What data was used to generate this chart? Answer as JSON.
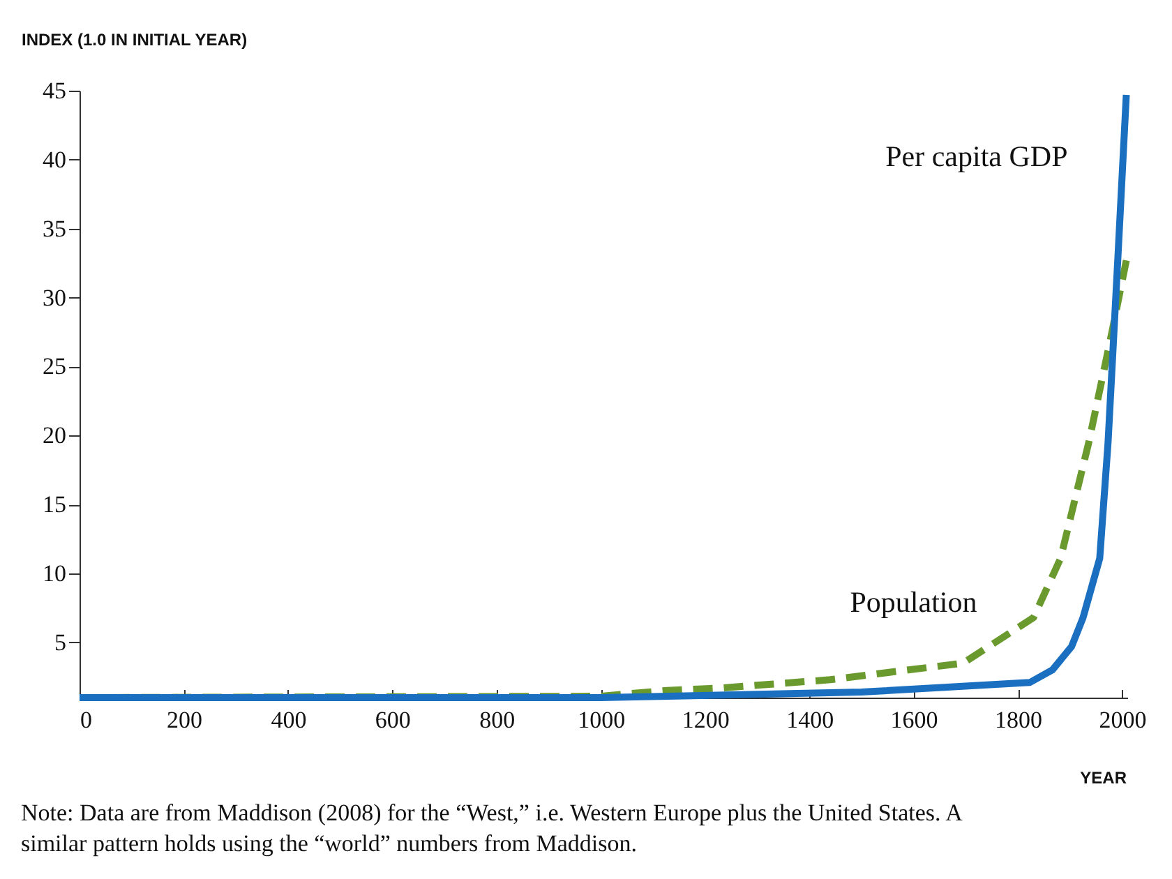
{
  "chart_data": {
    "type": "line",
    "xlabel": "YEAR",
    "ylabel": "INDEX (1.0 IN INITIAL YEAR)",
    "xlim": [
      0,
      2010
    ],
    "xticks": [
      0,
      200,
      400,
      600,
      800,
      1000,
      1200,
      1400,
      1600,
      1800,
      2000
    ],
    "ylim": [
      1,
      45
    ],
    "yticks": [
      5,
      10,
      15,
      20,
      25,
      30,
      35,
      40,
      45
    ],
    "grid": false,
    "marker": "none",
    "series": [
      {
        "name": "Per capita GDP",
        "color": "#1a6fc0",
        "line_style": "solid",
        "x": [
          0,
          1000,
          1500,
          1823,
          1866,
          1903,
          1925,
          1957,
          1973,
          1992,
          2008
        ],
        "values": [
          1,
          1,
          1.4,
          2.1,
          3.0,
          4.7,
          6.8,
          11.1,
          19.5,
          33,
          44.7
        ]
      },
      {
        "name": "Population",
        "color": "#6a9a2e",
        "line_style": "dashed",
        "x": [
          0,
          1000,
          1120,
          1232,
          1440,
          1695,
          1830,
          1882,
          1936,
          1981,
          2008
        ],
        "values": [
          1,
          1.1,
          1.5,
          1.7,
          2.3,
          3.5,
          6.8,
          11.1,
          19.5,
          27.6,
          32.7
        ]
      }
    ],
    "annotations": [
      "Note: Data are from Maddison (2008) for the “West,” i.e. Western Europe plus the United States. A similar pattern holds using the “world” numbers from Maddison."
    ]
  }
}
